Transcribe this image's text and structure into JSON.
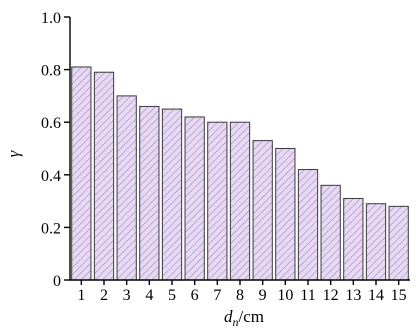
{
  "chart_data": {
    "type": "bar",
    "categories": [
      "1",
      "2",
      "3",
      "4",
      "5",
      "6",
      "7",
      "8",
      "9",
      "10",
      "11",
      "12",
      "13",
      "14",
      "15"
    ],
    "values": [
      0.81,
      0.79,
      0.7,
      0.66,
      0.65,
      0.62,
      0.6,
      0.6,
      0.53,
      0.5,
      0.42,
      0.36,
      0.31,
      0.29,
      0.28
    ],
    "title": "",
    "xlabel_main": "d",
    "xlabel_sub": "n",
    "xlabel_unit": "/cm",
    "ylabel": "γ",
    "ylim": [
      0,
      1.0
    ],
    "yticks": [
      "0",
      "0.2",
      "0.4",
      "0.6",
      "0.8",
      "1.0"
    ],
    "ytick_values": [
      0,
      0.2,
      0.4,
      0.6,
      0.8,
      1.0
    ],
    "grid": false,
    "bar_fill_color": "#e7d8f3",
    "hatch_color": "#9e86b8",
    "bar_edge_color": "#3a3a3a"
  }
}
